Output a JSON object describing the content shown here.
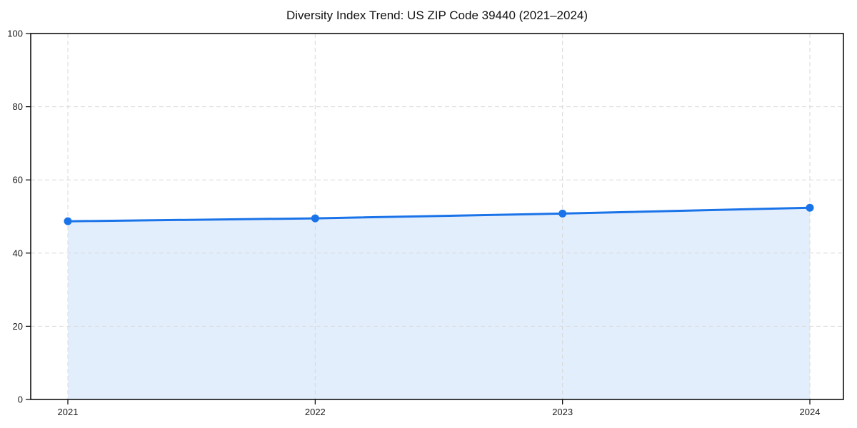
{
  "figure": {
    "background": "#ffffff"
  },
  "chart_data": {
    "type": "area",
    "title": "Diversity Index Trend: US ZIP Code 39440 (2021–2024)",
    "categories": [
      "2021",
      "2022",
      "2023",
      "2024"
    ],
    "series": [
      {
        "name": "Diversity Index",
        "values": [
          48.7,
          49.5,
          50.8,
          52.4
        ]
      }
    ],
    "xlabel": "",
    "ylabel": "",
    "ylim": [
      0,
      100
    ],
    "yticks": [
      0,
      20,
      40,
      60,
      80,
      100
    ],
    "grid": "dashed",
    "legend_position": "none",
    "colors": {
      "line": "#1a73e8",
      "marker": "#1a73e8",
      "fill": "rgba(26,115,232,0.12)",
      "grid": "#d9d9d9",
      "axis": "#000000",
      "tick_label": "#1a1a1a"
    }
  }
}
